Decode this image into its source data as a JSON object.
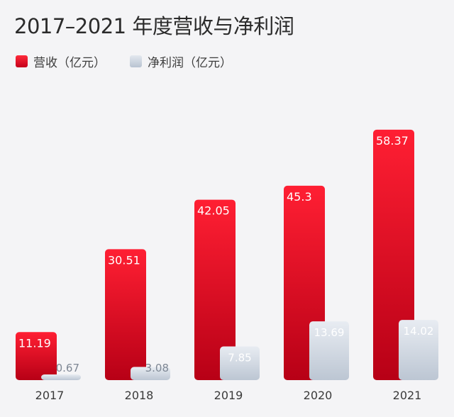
{
  "title": "2017–2021 年度营收与净利润",
  "legend": {
    "revenue": "营收（亿元）",
    "net_profit": "净利润（亿元）"
  },
  "colors": {
    "revenue_top": "#ff1f33",
    "revenue_bottom": "#b70016",
    "profit_top": "#e8ecf2",
    "profit_bottom": "#bcc6d3"
  },
  "chart_data": {
    "type": "bar",
    "title": "2017–2021 年度营收与净利润",
    "categories": [
      "2017",
      "2018",
      "2019",
      "2020",
      "2021"
    ],
    "series": [
      {
        "name": "营收（亿元）",
        "values": [
          11.19,
          30.51,
          42.05,
          45.3,
          58.37
        ],
        "labels": [
          "11.19",
          "30.51",
          "42.05",
          "45.3",
          "58.37"
        ]
      },
      {
        "name": "净利润（亿元）",
        "values": [
          0.67,
          3.08,
          7.85,
          13.69,
          14.02
        ],
        "labels": [
          "0.67",
          "3.08",
          "7.85",
          "13.69",
          "14.02"
        ]
      }
    ],
    "legend_position": "top-left",
    "grid": false
  }
}
